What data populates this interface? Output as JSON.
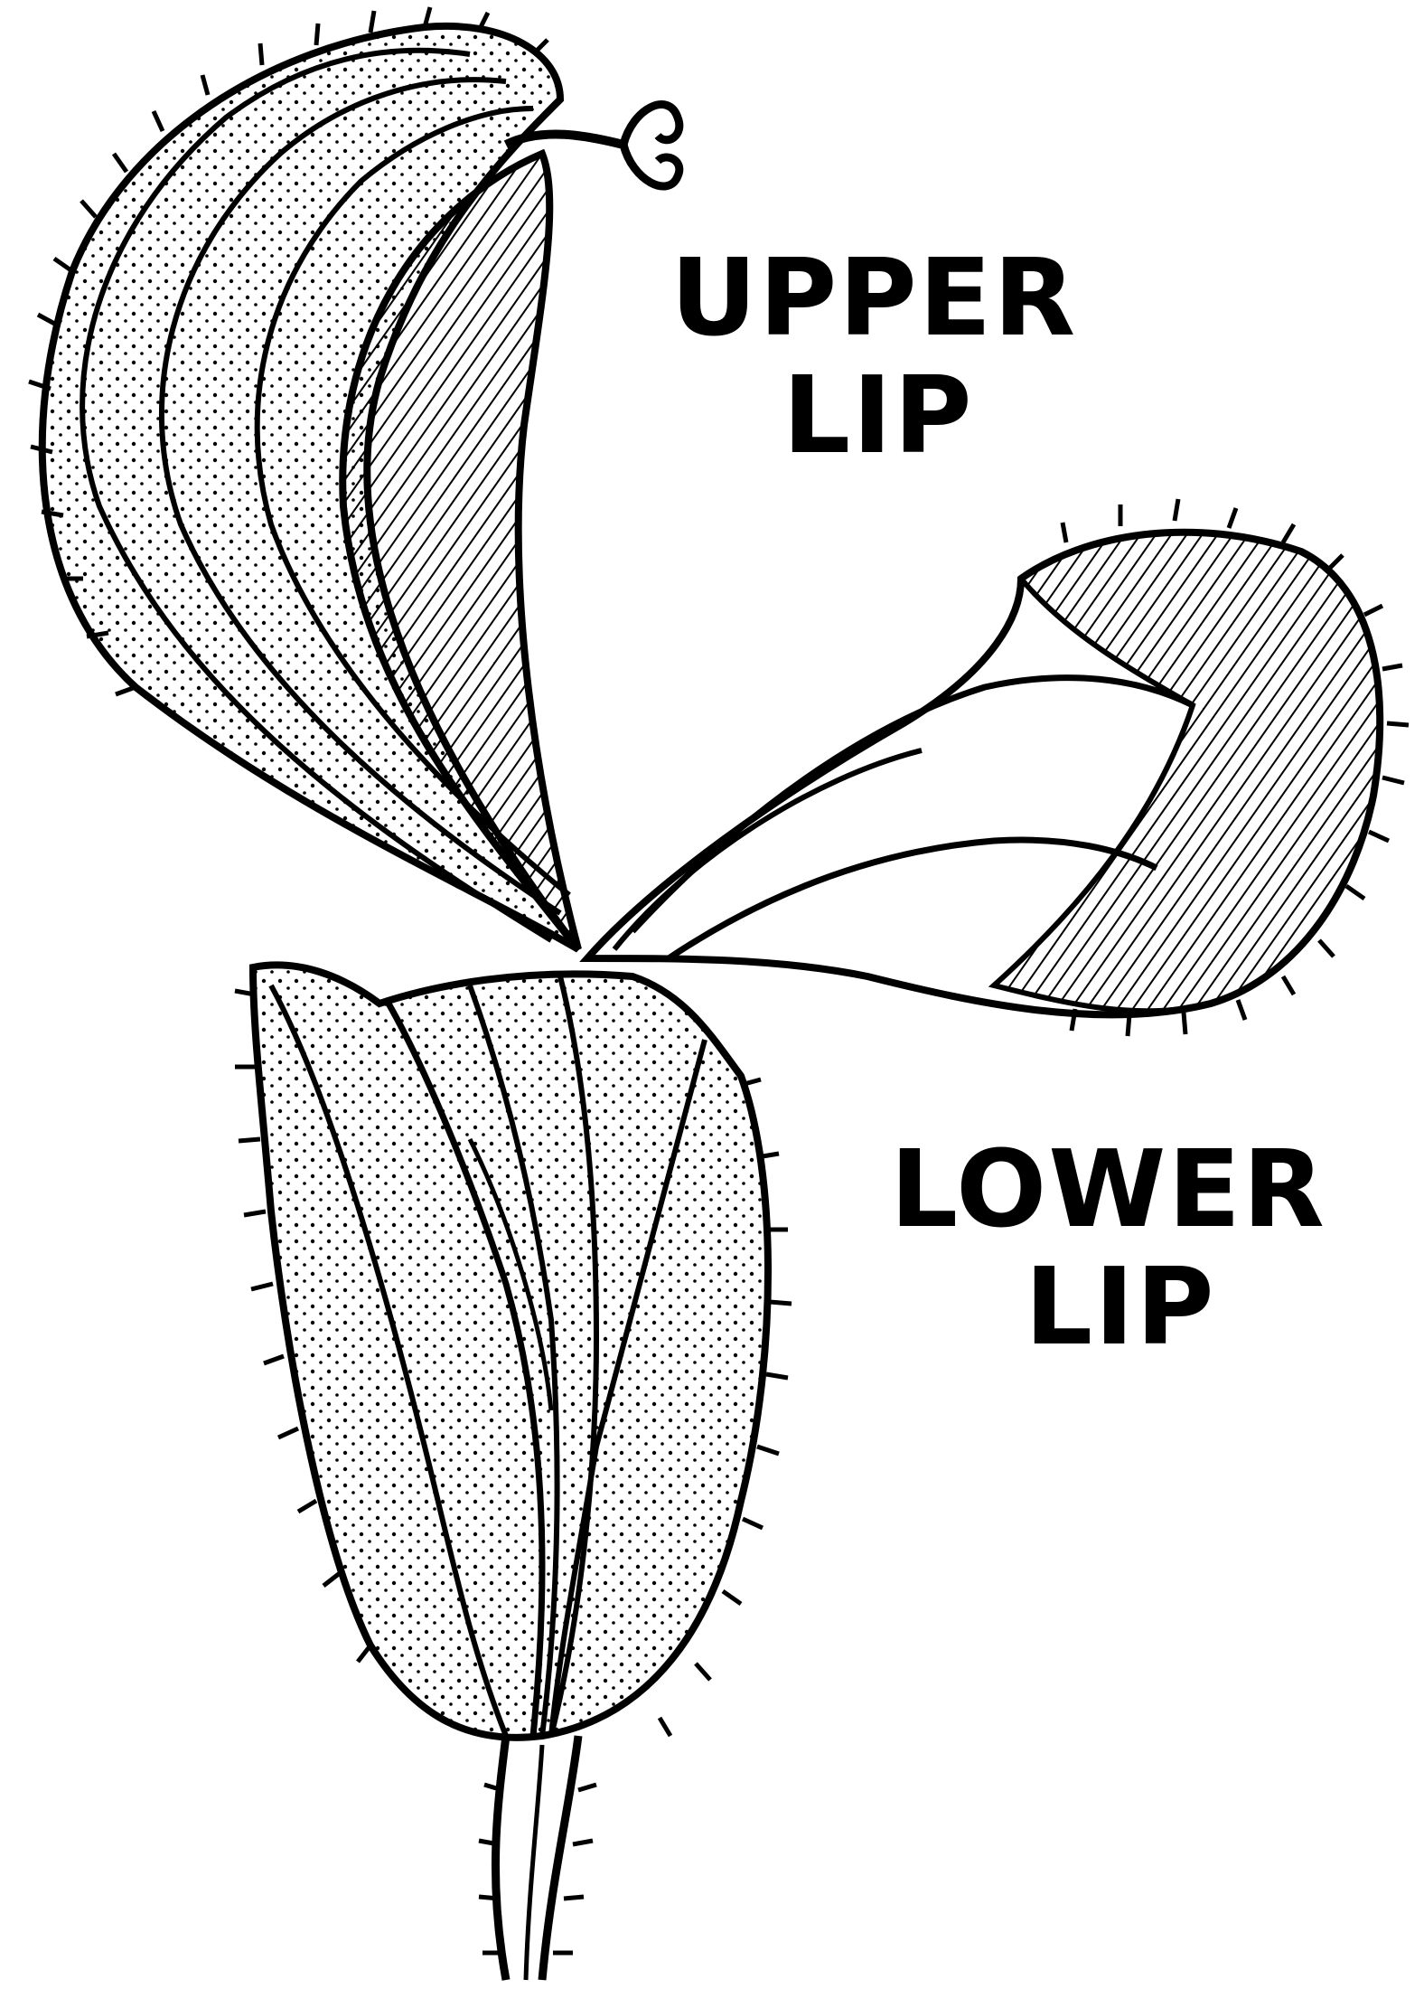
{
  "labels": {
    "upper_line1": "UPPER",
    "upper_line2": "LIP",
    "lower_line1": "LOWER",
    "lower_line2": "LIP"
  },
  "colors": {
    "ink": "#000000",
    "background": "#ffffff"
  }
}
